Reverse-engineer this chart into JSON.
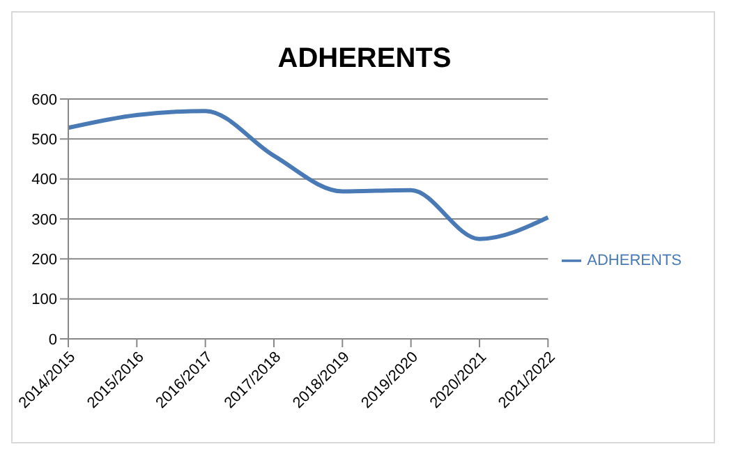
{
  "chart_data": {
    "type": "line",
    "title": "ADHERENTS",
    "categories": [
      "2014/2015",
      "2015/2016",
      "2016/2017",
      "2017/2018",
      "2018/2019",
      "2019/2020",
      "2020/2021",
      "2021/2022"
    ],
    "series": [
      {
        "name": "ADHERENTS",
        "color": "#4a7ab5",
        "values": [
          528,
          560,
          570,
          458,
          369,
          372,
          250,
          304
        ]
      }
    ],
    "ylim": [
      0,
      600
    ],
    "yticks": [
      0,
      100,
      200,
      300,
      400,
      500,
      600
    ],
    "grid": "y",
    "legend": "right",
    "marker": "none",
    "line_style": "solid"
  }
}
